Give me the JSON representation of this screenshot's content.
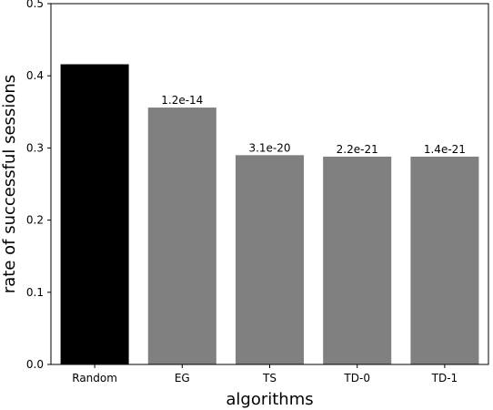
{
  "chart_data": {
    "type": "bar",
    "title": "",
    "xlabel": "algorithms",
    "ylabel": "rate of successful sessions",
    "categories": [
      "Random",
      "EG",
      "TS",
      "TD-0",
      "TD-1"
    ],
    "values": [
      0.416,
      0.356,
      0.29,
      0.288,
      0.288
    ],
    "bar_labels": [
      "",
      "1.2e-14",
      "3.1e-20",
      "2.2e-21",
      "1.4e-21"
    ],
    "bar_colors": [
      "#000000",
      "#808080",
      "#808080",
      "#808080",
      "#808080"
    ],
    "ylim": [
      0,
      0.5
    ],
    "yticks": [
      0.0,
      0.1,
      0.2,
      0.3,
      0.4,
      0.5
    ],
    "ytick_labels": [
      "0.0",
      "0.1",
      "0.2",
      "0.3",
      "0.4",
      "0.5"
    ],
    "grid": false,
    "legend": "none"
  }
}
